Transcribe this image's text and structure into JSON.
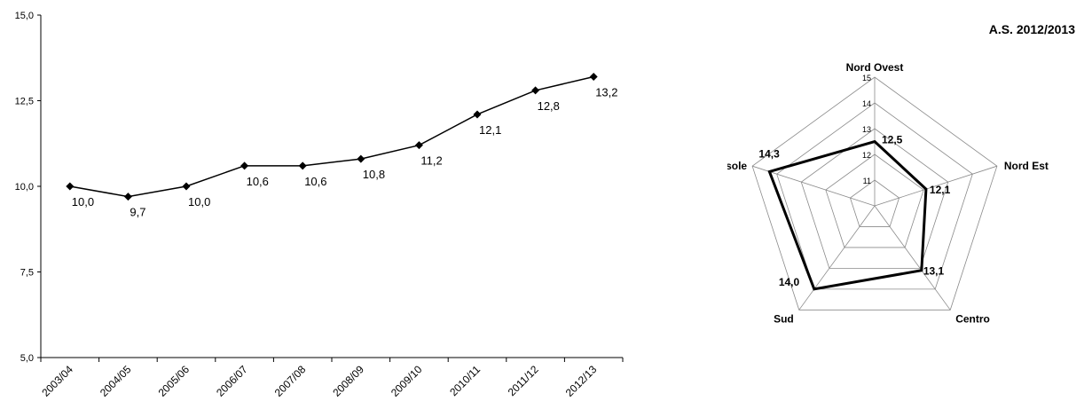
{
  "chart_data": [
    {
      "type": "line",
      "categories": [
        "2003/04",
        "2004/05",
        "2005/06",
        "2006/07",
        "2007/08",
        "2008/09",
        "2009/10",
        "2010/11",
        "2011/12",
        "2012/13"
      ],
      "series": [
        {
          "values": [
            10.0,
            9.7,
            10.0,
            10.6,
            10.6,
            10.8,
            11.2,
            12.1,
            12.8,
            13.2
          ]
        }
      ],
      "data_labels": [
        "10,0",
        "9,7",
        "10,0",
        "10,6",
        "10,6",
        "10,8",
        "11,2",
        "12,1",
        "12,8",
        "13,2"
      ],
      "yticks": [
        "5,0",
        "7,5",
        "10,0",
        "12,5",
        "15,0"
      ],
      "ylim": [
        5,
        15
      ],
      "marker": "diamond",
      "grid": false
    },
    {
      "type": "radar",
      "title": "A.S. 2012/2013",
      "axes": [
        "Nord Ovest",
        "Nord Est",
        "Centro",
        "Sud",
        "Isole"
      ],
      "values": [
        12.5,
        12.1,
        13.1,
        14.0,
        14.3
      ],
      "data_labels": [
        "12,5",
        "12,1",
        "13,1",
        "14,0",
        "14,3"
      ],
      "rticks": [
        "11",
        "12",
        "13",
        "14",
        "15"
      ],
      "rlim": [
        10,
        15
      ]
    }
  ]
}
